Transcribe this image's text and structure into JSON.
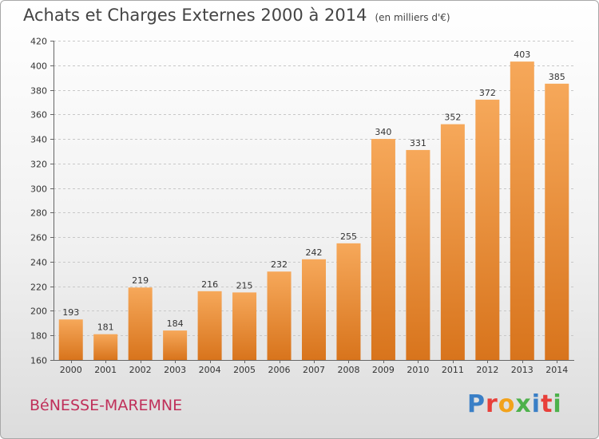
{
  "header": {
    "title": "Achats et Charges Externes 2000 à 2014",
    "unit": "(en milliers d'€)"
  },
  "footer": {
    "commune": "BéNESSE-MAREMNE",
    "logo_letters": [
      "P",
      "r",
      "o",
      "x",
      "i",
      "t",
      "i"
    ]
  },
  "colors": {
    "bar_light": "#f6a85a",
    "bar_dark": "#d8741c",
    "commune_text": "#c0305a",
    "logo": [
      "#3a7fc6",
      "#e8403a",
      "#f2a21b",
      "#4db14b",
      "#3a7fc6",
      "#e8403a",
      "#4db14b"
    ]
  },
  "chart_data": {
    "type": "bar",
    "title": "Achats et Charges Externes 2000 à 2014",
    "subtitle": "(en milliers d'€)",
    "xlabel": "",
    "ylabel": "",
    "categories": [
      "2000",
      "2001",
      "2002",
      "2003",
      "2004",
      "2005",
      "2006",
      "2007",
      "2008",
      "2009",
      "2010",
      "2011",
      "2012",
      "2013",
      "2014"
    ],
    "values": [
      193,
      181,
      219,
      184,
      216,
      215,
      232,
      242,
      255,
      340,
      331,
      352,
      372,
      403,
      385
    ],
    "ylim": [
      160,
      420
    ],
    "yticks": [
      160,
      180,
      200,
      220,
      240,
      260,
      280,
      300,
      320,
      340,
      360,
      380,
      400,
      420
    ],
    "grid": true,
    "legend": "none"
  }
}
